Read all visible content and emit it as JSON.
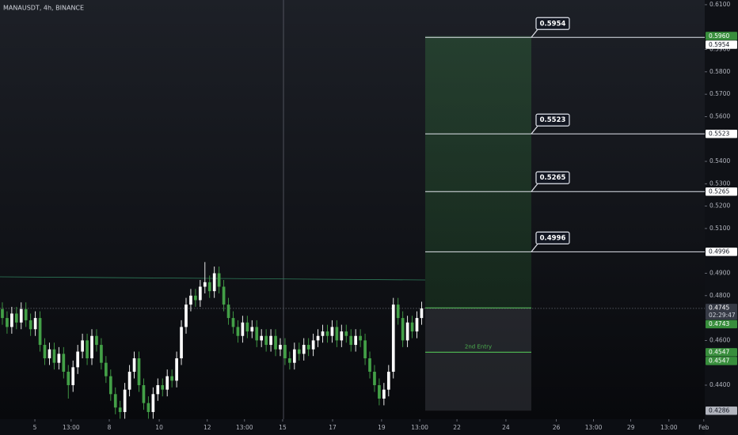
{
  "chart_data": {
    "type": "candlestick",
    "title": "MANAUSDT, 4h, BINANCE",
    "up_color": "#ffffff",
    "down_color": "#43a047",
    "xlim": [
      -0.5,
      149.1
    ],
    "ylim": [
      0.4248,
      0.6121
    ],
    "grid": false,
    "xticks": [
      {
        "value": 6.9,
        "label": "5"
      },
      {
        "value": 14.6,
        "label": "13:00"
      },
      {
        "value": 22.7,
        "label": "8"
      },
      {
        "value": 33.3,
        "label": "10"
      },
      {
        "value": 43.5,
        "label": "12"
      },
      {
        "value": 51.4,
        "label": "13:00"
      },
      {
        "value": 59.5,
        "label": "15"
      },
      {
        "value": 70.1,
        "label": "17"
      },
      {
        "value": 80.5,
        "label": "19"
      },
      {
        "value": 88.6,
        "label": "13:00"
      },
      {
        "value": 96.5,
        "label": "22"
      },
      {
        "value": 106.9,
        "label": "24"
      },
      {
        "value": 117.6,
        "label": "26"
      },
      {
        "value": 125.5,
        "label": "13:00"
      },
      {
        "value": 133.4,
        "label": "29"
      },
      {
        "value": 141.5,
        "label": "13:00"
      },
      {
        "value": 148.9,
        "label": "Feb"
      }
    ],
    "yticks": [
      {
        "value": 0.61,
        "label": "0.6100"
      },
      {
        "value": 0.59,
        "label": "0.5900"
      },
      {
        "value": 0.58,
        "label": "0.5800"
      },
      {
        "value": 0.57,
        "label": "0.5700"
      },
      {
        "value": 0.56,
        "label": "0.5600"
      },
      {
        "value": 0.54,
        "label": "0.5400"
      },
      {
        "value": 0.53,
        "label": "0.5300"
      },
      {
        "value": 0.52,
        "label": "0.5200"
      },
      {
        "value": 0.51,
        "label": "0.5100"
      },
      {
        "value": 0.49,
        "label": "0.4900"
      },
      {
        "value": 0.48,
        "label": "0.4800"
      },
      {
        "value": 0.46,
        "label": "0.4600"
      },
      {
        "value": 0.44,
        "label": "0.4400"
      }
    ],
    "open": [
      0.474,
      0.47,
      0.466,
      0.472,
      0.468,
      0.474,
      0.469,
      0.465,
      0.47,
      0.458,
      0.452,
      0.456,
      0.45,
      0.454,
      0.446,
      0.44,
      0.448,
      0.455,
      0.46,
      0.452,
      0.462,
      0.458,
      0.45,
      0.444,
      0.436,
      0.43,
      0.428,
      0.438,
      0.446,
      0.452,
      0.44,
      0.432,
      0.428,
      0.436,
      0.44,
      0.438,
      0.444,
      0.442,
      0.452,
      0.466,
      0.476,
      0.48,
      0.478,
      0.484,
      0.486,
      0.482,
      0.49,
      0.484,
      0.476,
      0.47,
      0.466,
      0.462,
      0.468,
      0.464,
      0.466,
      0.46,
      0.462,
      0.458,
      0.462,
      0.456,
      0.458,
      0.452,
      0.45,
      0.456,
      0.454,
      0.458,
      0.456,
      0.46,
      0.462,
      0.464,
      0.462,
      0.466,
      0.46,
      0.464,
      0.462,
      0.458,
      0.462,
      0.46,
      0.452,
      0.446,
      0.44,
      0.434,
      0.438,
      0.446,
      0.476,
      0.47,
      0.46,
      0.468,
      0.464,
      0.47
    ],
    "high": [
      0.477,
      0.473,
      0.475,
      0.475,
      0.477,
      0.477,
      0.472,
      0.473,
      0.473,
      0.461,
      0.459,
      0.459,
      0.457,
      0.457,
      0.449,
      0.451,
      0.458,
      0.463,
      0.463,
      0.465,
      0.465,
      0.461,
      0.453,
      0.447,
      0.439,
      0.433,
      0.441,
      0.449,
      0.455,
      0.455,
      0.443,
      0.435,
      0.439,
      0.443,
      0.443,
      0.447,
      0.447,
      0.455,
      0.469,
      0.479,
      0.483,
      0.483,
      0.487,
      0.495,
      0.489,
      0.493,
      0.493,
      0.487,
      0.479,
      0.473,
      0.469,
      0.471,
      0.471,
      0.469,
      0.469,
      0.465,
      0.465,
      0.465,
      0.465,
      0.461,
      0.461,
      0.455,
      0.459,
      0.459,
      0.461,
      0.461,
      0.463,
      0.465,
      0.467,
      0.467,
      0.469,
      0.469,
      0.467,
      0.467,
      0.465,
      0.465,
      0.465,
      0.463,
      0.455,
      0.449,
      0.443,
      0.441,
      0.449,
      0.479,
      0.479,
      0.473,
      0.471,
      0.471,
      0.473,
      0.4773
    ],
    "low": [
      0.467,
      0.463,
      0.463,
      0.465,
      0.465,
      0.466,
      0.462,
      0.462,
      0.455,
      0.449,
      0.449,
      0.447,
      0.447,
      0.443,
      0.434,
      0.437,
      0.445,
      0.452,
      0.449,
      0.449,
      0.455,
      0.447,
      0.441,
      0.433,
      0.427,
      0.425,
      0.425,
      0.435,
      0.443,
      0.437,
      0.429,
      0.425,
      0.425,
      0.433,
      0.435,
      0.435,
      0.439,
      0.439,
      0.449,
      0.463,
      0.473,
      0.475,
      0.475,
      0.481,
      0.479,
      0.479,
      0.481,
      0.473,
      0.467,
      0.463,
      0.459,
      0.459,
      0.461,
      0.461,
      0.457,
      0.457,
      0.455,
      0.455,
      0.453,
      0.453,
      0.449,
      0.447,
      0.447,
      0.451,
      0.451,
      0.453,
      0.453,
      0.457,
      0.459,
      0.459,
      0.459,
      0.457,
      0.457,
      0.459,
      0.455,
      0.455,
      0.457,
      0.449,
      0.443,
      0.437,
      0.431,
      0.431,
      0.435,
      0.443,
      0.467,
      0.457,
      0.457,
      0.461,
      0.461,
      0.467
    ],
    "close": [
      0.47,
      0.466,
      0.472,
      0.468,
      0.474,
      0.469,
      0.465,
      0.47,
      0.458,
      0.452,
      0.456,
      0.45,
      0.454,
      0.446,
      0.44,
      0.448,
      0.455,
      0.46,
      0.452,
      0.462,
      0.458,
      0.45,
      0.444,
      0.436,
      0.43,
      0.428,
      0.438,
      0.446,
      0.452,
      0.44,
      0.432,
      0.428,
      0.436,
      0.44,
      0.438,
      0.444,
      0.442,
      0.452,
      0.466,
      0.476,
      0.48,
      0.478,
      0.484,
      0.486,
      0.482,
      0.49,
      0.484,
      0.476,
      0.47,
      0.466,
      0.462,
      0.468,
      0.464,
      0.466,
      0.46,
      0.462,
      0.458,
      0.462,
      0.456,
      0.458,
      0.452,
      0.45,
      0.456,
      0.454,
      0.458,
      0.456,
      0.46,
      0.462,
      0.464,
      0.462,
      0.466,
      0.46,
      0.464,
      0.462,
      0.458,
      0.462,
      0.46,
      0.452,
      0.446,
      0.44,
      0.434,
      0.438,
      0.446,
      0.476,
      0.47,
      0.46,
      0.468,
      0.464,
      0.47,
      0.4743
    ],
    "position": {
      "target": 0.596,
      "entry": 0.4745,
      "stop": 0.4286,
      "second_entry": 0.4547,
      "second_entry_label": "2nd Entry"
    },
    "levels": [
      0.5954,
      0.5523,
      0.5265,
      0.4996
    ],
    "countdown": "02:29:47",
    "axis_badges": [
      {
        "value": 0.596,
        "label": "0.5960",
        "color": "#388e3c"
      },
      {
        "value": 0.5954,
        "color": "#ffffff"
      },
      {
        "value": 0.5523,
        "color": "#ffffff"
      },
      {
        "value": 0.5265,
        "color": "#ffffff"
      },
      {
        "value": 0.4996,
        "color": "#ffffff"
      },
      {
        "value": 0.4745,
        "color": "#363a45"
      },
      {
        "value": 0.4743,
        "color": "#388e3c"
      },
      {
        "value": 0.4547,
        "color": "#388e3c"
      },
      {
        "value": 0.4547,
        "color": "#388e3c"
      },
      {
        "value": 0.4286,
        "color": "#b2b5be"
      }
    ]
  }
}
